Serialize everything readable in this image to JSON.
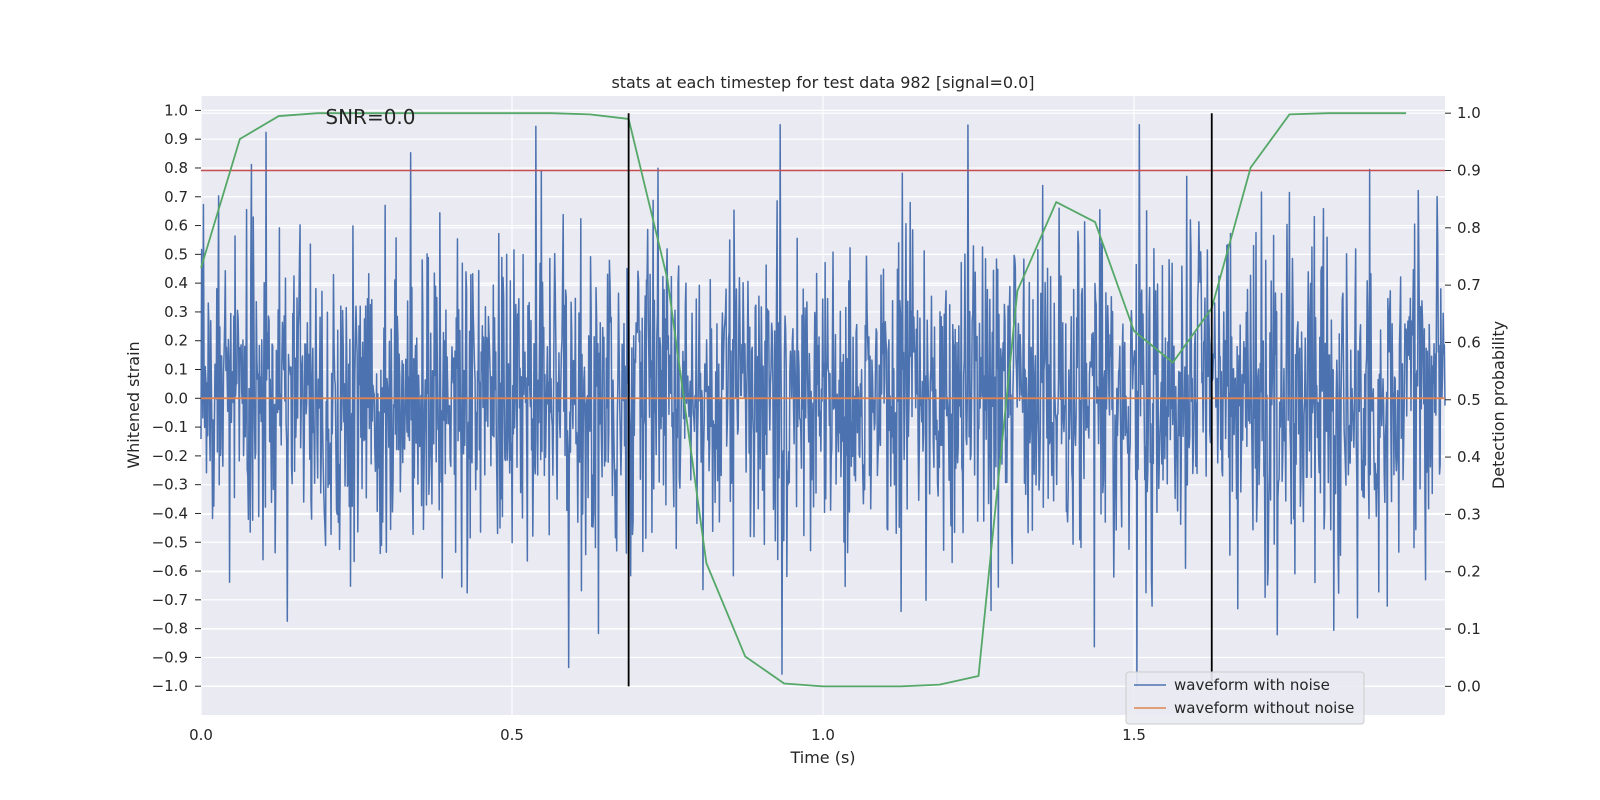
{
  "chart_data": {
    "type": "line",
    "title": "stats at each timestep for test data 982 [signal=0.0]",
    "xlabel": "Time (s)",
    "ylabel": "Whitened strain",
    "y2label": "Detection probability",
    "xlim": [
      0.0,
      2.0
    ],
    "ylim": [
      -1.1,
      1.05
    ],
    "y2lim": [
      -0.05,
      1.03
    ],
    "x_ticks": [
      0.0,
      0.5,
      1.0,
      1.5
    ],
    "x_tick_labels": [
      "0.0",
      "0.5",
      "1.0",
      "1.5"
    ],
    "y_ticks": [
      -1.0,
      -0.9,
      -0.8,
      -0.7,
      -0.6,
      -0.5,
      -0.4,
      -0.3,
      -0.2,
      -0.1,
      0.0,
      0.1,
      0.2,
      0.3,
      0.4,
      0.5,
      0.6,
      0.7,
      0.8,
      0.9,
      1.0
    ],
    "y_tick_labels": [
      "−1.0",
      "−0.9",
      "−0.8",
      "−0.7",
      "−0.6",
      "−0.5",
      "−0.4",
      "−0.3",
      "−0.2",
      "−0.1",
      "0.0",
      "0.1",
      "0.2",
      "0.3",
      "0.4",
      "0.5",
      "0.6",
      "0.7",
      "0.8",
      "0.9",
      "1.0"
    ],
    "y2_ticks": [
      0.0,
      0.1,
      0.2,
      0.3,
      0.4,
      0.5,
      0.6,
      0.7,
      0.8,
      0.9,
      1.0
    ],
    "y2_tick_labels": [
      "0.0",
      "0.1",
      "0.2",
      "0.3",
      "0.4",
      "0.5",
      "0.6",
      "0.7",
      "0.8",
      "0.9",
      "1.0"
    ],
    "annotation": "SNR=0.0",
    "annotation_x": 0.2,
    "annotation_y": 0.97,
    "series": [
      {
        "name": "waveform with noise",
        "color": "#4c72b0",
        "kind": "noise",
        "n_samples": 2048,
        "sigma": 0.28,
        "clip": [
          -1.0,
          0.95
        ],
        "seed": 982
      },
      {
        "name": "waveform without noise",
        "color": "#dd8452",
        "x": [
          0.0,
          2.0
        ],
        "y": [
          0.0,
          0.0
        ]
      }
    ],
    "threshold": {
      "value": 0.9,
      "axis": "y2",
      "color": "#c44e52"
    },
    "detection_probability": {
      "color": "#55a868",
      "x": [
        0.0,
        0.0625,
        0.125,
        0.1875,
        0.25,
        0.3125,
        0.375,
        0.4375,
        0.5,
        0.5625,
        0.625,
        0.6875,
        0.75,
        0.8125,
        0.875,
        0.9375,
        1.0,
        1.0625,
        1.125,
        1.1875,
        1.25,
        1.3125,
        1.375,
        1.4375,
        1.5,
        1.5625,
        1.625,
        1.6875,
        1.75,
        1.8125,
        1.875,
        1.9375
      ],
      "y": [
        0.73,
        0.955,
        0.995,
        1.0,
        1.0,
        1.0,
        1.0,
        1.0,
        1.0,
        1.0,
        0.998,
        0.99,
        0.71,
        0.215,
        0.052,
        0.005,
        0.0,
        0.0,
        0.0,
        0.003,
        0.018,
        0.69,
        0.845,
        0.81,
        0.62,
        0.565,
        0.66,
        0.905,
        0.998,
        1.0,
        1.0,
        1.0
      ]
    },
    "vlines": [
      0.6875,
      1.625
    ],
    "legend_position": "lower-right"
  }
}
